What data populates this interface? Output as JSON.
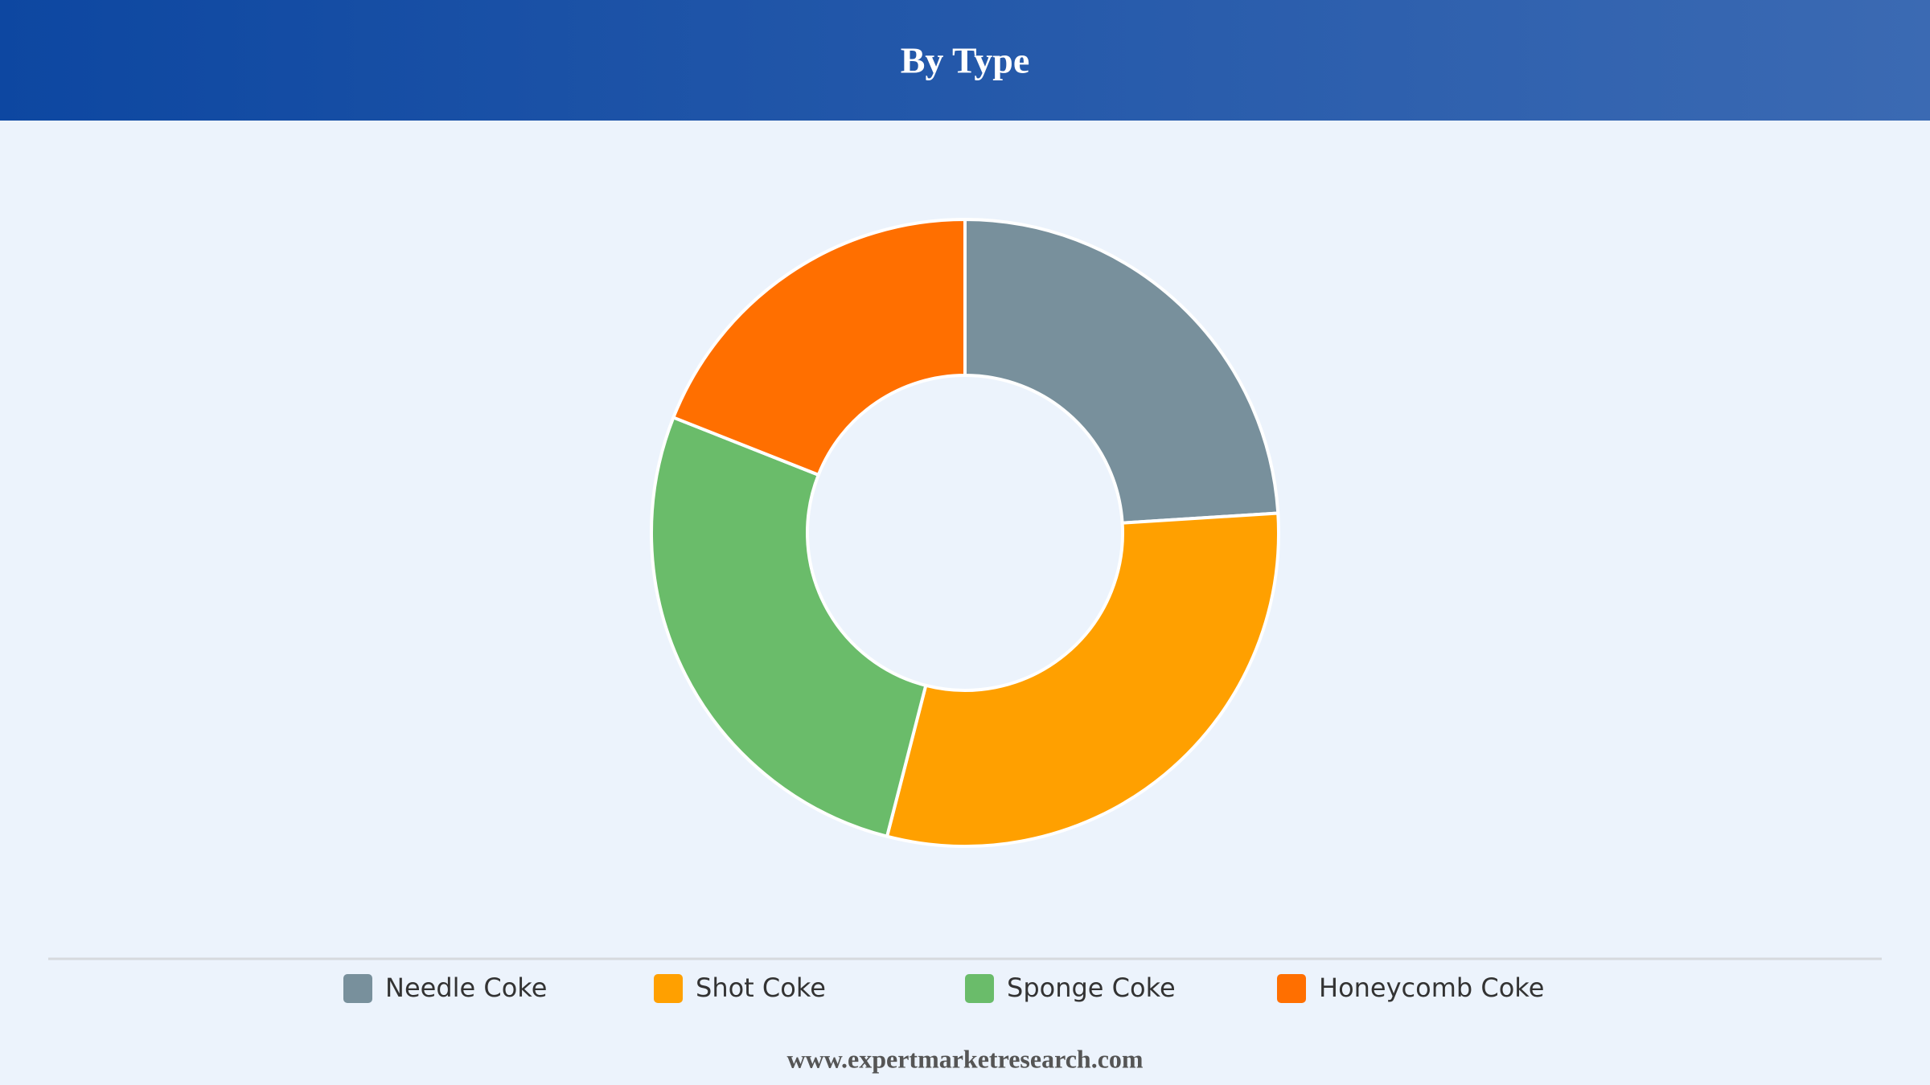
{
  "chart_data": {
    "type": "donut",
    "title": "By Type",
    "categories": [
      "Needle Coke",
      "Shot Coke",
      "Sponge Coke",
      "Honeycomb Coke"
    ],
    "values": [
      24,
      30,
      27,
      19
    ],
    "colors": [
      "#78909c",
      "#ffa000",
      "#6abc6a",
      "#ff6f00"
    ],
    "legend": "bottom"
  },
  "footer": "www.expertmarketresearch.com"
}
